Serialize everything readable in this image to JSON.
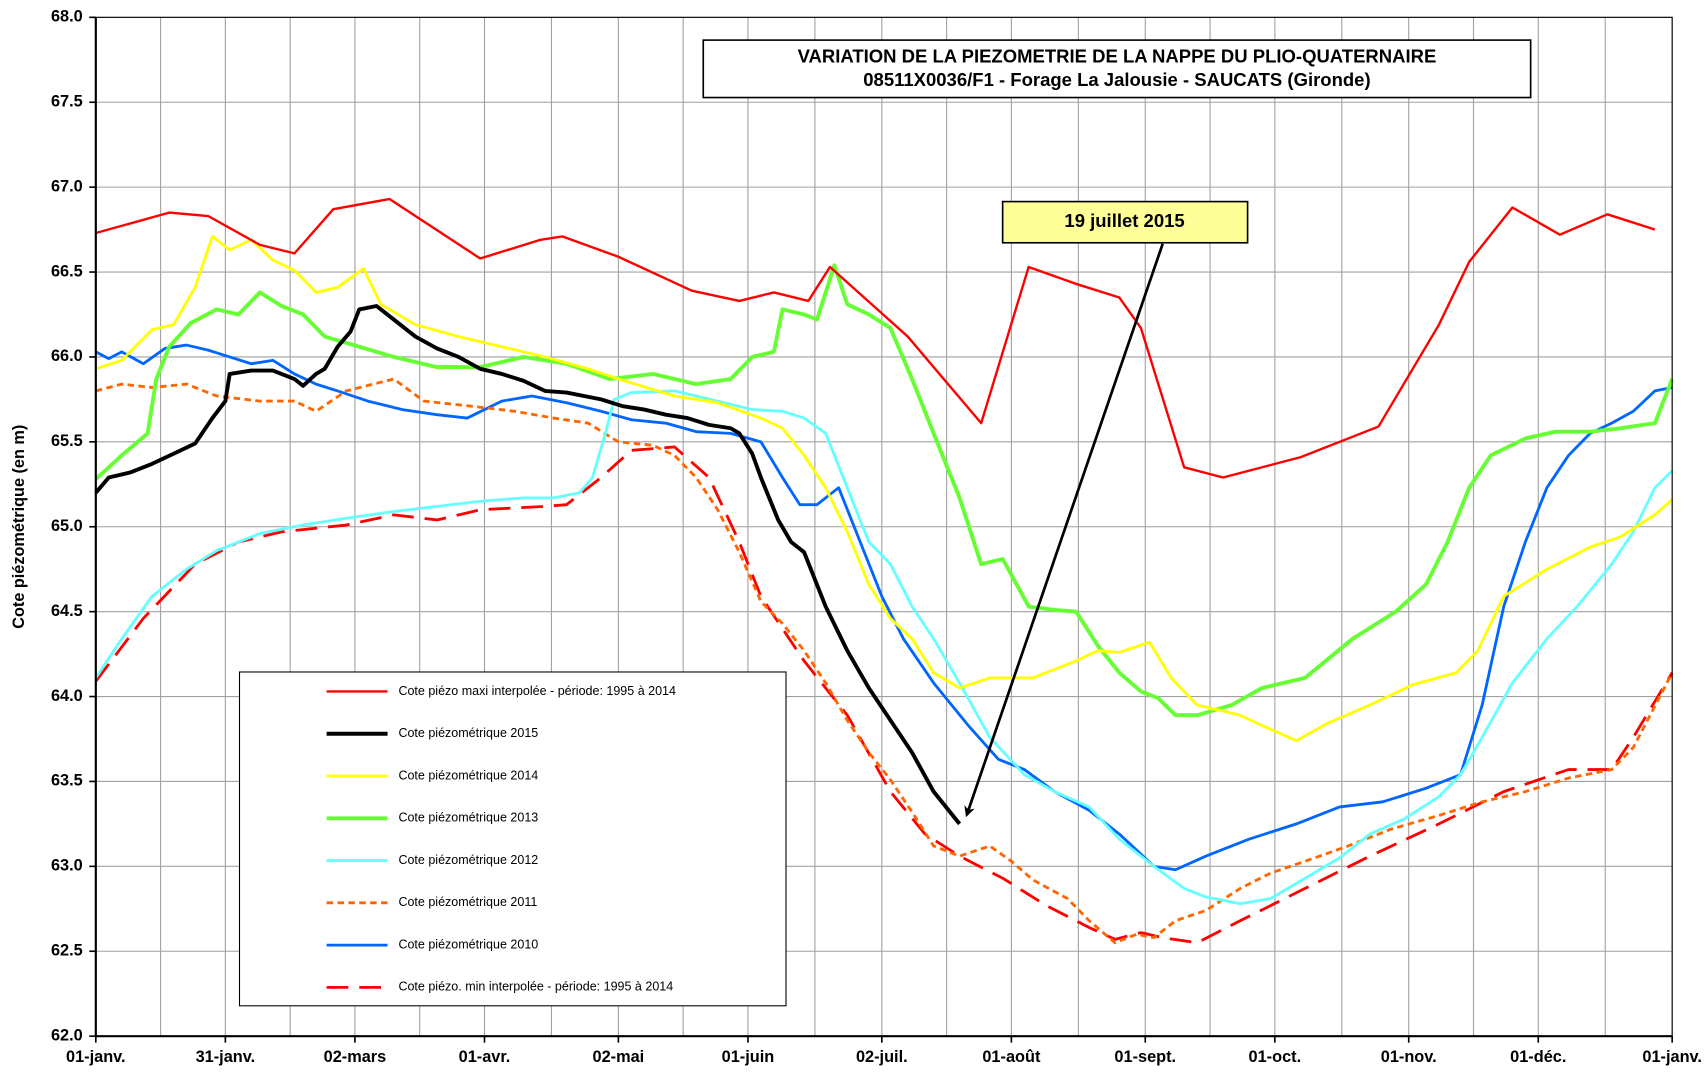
{
  "chart_data": {
    "type": "line",
    "title": [
      "VARIATION DE LA PIEZOMETRIE DE LA NAPPE DU PLIO-QUATERNAIRE",
      "08511X0036/F1 - Forage La Jalousie - SAUCATS (Gironde)"
    ],
    "y_label": "Cote piézométrique (en m)",
    "annotations": [
      "19 juillet 2015"
    ],
    "xlim": [
      0,
      365
    ],
    "xticks": [
      {
        "value": 0,
        "label": "01-janv."
      },
      {
        "value": 30,
        "label": "31-janv."
      },
      {
        "value": 60,
        "label": "02-mars"
      },
      {
        "value": 90,
        "label": "01-avr."
      },
      {
        "value": 121,
        "label": "02-mai"
      },
      {
        "value": 151,
        "label": "01-juin"
      },
      {
        "value": 182,
        "label": "02-juil."
      },
      {
        "value": 212,
        "label": "01-août"
      },
      {
        "value": 243,
        "label": "01-sept."
      },
      {
        "value": 273,
        "label": "01-oct."
      },
      {
        "value": 304,
        "label": "01-nov."
      },
      {
        "value": 334,
        "label": "01-déc."
      },
      {
        "value": 365,
        "label": "01-janv."
      }
    ],
    "ylim": [
      62,
      68
    ],
    "yticks": [
      {
        "value": 62,
        "label": "62.0"
      },
      62.5,
      {
        "value": 63,
        "label": "63.0"
      },
      63.5,
      {
        "value": 64,
        "label": "64.0"
      },
      64.5,
      {
        "value": 65,
        "label": "65.0"
      },
      65.5,
      {
        "value": 66,
        "label": "66.0"
      },
      66.5,
      {
        "value": 67,
        "label": "67.0"
      },
      67.5,
      {
        "value": 68,
        "label": "68.0"
      }
    ],
    "grid": true,
    "series": [
      {
        "name": "Cote piézo maxi interpolée - période: 1995 à 2014",
        "color": "#ff0000",
        "style": "solid",
        "x": [
          0,
          17,
          26,
          38,
          46,
          55,
          68,
          89,
          103,
          108,
          121,
          138,
          149,
          157,
          165,
          170,
          188,
          205,
          216,
          227,
          237,
          242,
          252,
          261,
          279,
          297,
          311,
          318,
          328,
          339,
          350,
          361
        ],
        "values": [
          66.73,
          66.85,
          66.83,
          66.66,
          66.61,
          66.87,
          66.93,
          66.58,
          66.69,
          66.71,
          66.59,
          66.39,
          66.33,
          66.38,
          66.33,
          66.53,
          66.12,
          65.61,
          66.53,
          66.43,
          66.35,
          66.17,
          65.35,
          65.29,
          65.41,
          65.59,
          66.19,
          66.56,
          66.88,
          66.72,
          66.84,
          66.75
        ]
      },
      {
        "name": "Cote piézométrique 2015",
        "color": "#000000",
        "style": "solid",
        "x": [
          0,
          3,
          8,
          13,
          18,
          23,
          27,
          30,
          31,
          36,
          41,
          46,
          48,
          51,
          53,
          56,
          59,
          61,
          65,
          69,
          74,
          79,
          84,
          89,
          94,
          99,
          104,
          109,
          117,
          122,
          127,
          132,
          137,
          142,
          147,
          149,
          152,
          154,
          158,
          161,
          164,
          169,
          174,
          179,
          184,
          189,
          194,
          200
        ],
        "values": [
          65.2,
          65.29,
          65.32,
          65.37,
          65.43,
          65.49,
          65.64,
          65.74,
          65.9,
          65.92,
          65.92,
          65.87,
          65.83,
          65.9,
          65.93,
          66.06,
          66.15,
          66.28,
          66.3,
          66.22,
          66.12,
          66.05,
          66.0,
          65.93,
          65.9,
          65.86,
          65.8,
          65.79,
          65.75,
          65.71,
          65.69,
          65.66,
          65.64,
          65.6,
          65.58,
          65.55,
          65.43,
          65.29,
          65.04,
          64.91,
          64.85,
          64.53,
          64.27,
          64.05,
          63.86,
          63.67,
          63.44,
          63.25
        ]
      },
      {
        "name": "Cote piézométrique 2014",
        "color": "#ffff00",
        "style": "solid",
        "x": [
          0,
          6,
          13,
          18,
          23,
          27,
          31,
          36,
          41,
          46,
          51,
          56,
          62,
          66,
          74,
          84,
          94,
          104,
          114,
          121,
          134,
          144,
          154,
          159,
          164,
          169,
          174,
          179,
          184,
          189,
          194,
          200,
          207,
          217,
          227,
          232,
          237,
          244,
          249,
          255,
          265,
          270,
          278,
          285,
          295,
          305,
          315,
          320,
          326,
          336,
          346,
          353,
          361,
          365
        ],
        "values": [
          65.93,
          65.98,
          66.16,
          66.19,
          66.41,
          66.71,
          66.63,
          66.69,
          66.57,
          66.51,
          66.38,
          66.41,
          66.52,
          66.31,
          66.19,
          66.12,
          66.06,
          66.0,
          65.93,
          65.87,
          65.77,
          65.73,
          65.64,
          65.58,
          65.42,
          65.23,
          64.97,
          64.66,
          64.46,
          64.34,
          64.14,
          64.05,
          64.11,
          64.11,
          64.21,
          64.27,
          64.26,
          64.32,
          64.11,
          63.95,
          63.89,
          63.83,
          63.74,
          63.84,
          63.95,
          64.07,
          64.14,
          64.27,
          64.59,
          64.75,
          64.88,
          64.94,
          65.07,
          65.16
        ]
      },
      {
        "name": "Cote piézométrique 2013",
        "color": "#66ff33",
        "style": "solid",
        "x": [
          0,
          6,
          12,
          14,
          17,
          22,
          28,
          33,
          38,
          43,
          48,
          53,
          61,
          69,
          79,
          89,
          99,
          109,
          119,
          129,
          139,
          147,
          152,
          157,
          159,
          164,
          167,
          171,
          174,
          179,
          184,
          189,
          194,
          200,
          205,
          210,
          216,
          222,
          227,
          232,
          237,
          242,
          246,
          250,
          255,
          263,
          270,
          280,
          291,
          301,
          308,
          313,
          318,
          323,
          331,
          338,
          346,
          353,
          361,
          365
        ],
        "values": [
          65.28,
          65.42,
          65.55,
          65.87,
          66.06,
          66.2,
          66.28,
          66.25,
          66.38,
          66.3,
          66.25,
          66.12,
          66.06,
          66.0,
          65.94,
          65.94,
          66.0,
          65.96,
          65.87,
          65.9,
          65.84,
          65.87,
          66.0,
          66.03,
          66.28,
          66.25,
          66.22,
          66.54,
          66.31,
          66.25,
          66.17,
          65.87,
          65.55,
          65.17,
          64.78,
          64.81,
          64.53,
          64.51,
          64.5,
          64.3,
          64.14,
          64.03,
          63.99,
          63.89,
          63.89,
          63.95,
          64.05,
          64.11,
          64.34,
          64.5,
          64.66,
          64.91,
          65.23,
          65.42,
          65.52,
          65.56,
          65.56,
          65.58,
          65.61,
          65.87
        ]
      },
      {
        "name": "Cote piézométrique 2012",
        "color": "#66ffff",
        "style": "solid",
        "x": [
          0,
          6,
          13,
          21,
          28,
          38,
          48,
          58,
          69,
          79,
          89,
          99,
          106,
          112,
          115,
          118,
          120,
          124,
          134,
          144,
          152,
          159,
          164,
          169,
          174,
          179,
          184,
          189,
          194,
          200,
          207,
          215,
          222,
          230,
          237,
          245,
          252,
          257,
          265,
          272,
          280,
          288,
          295,
          303,
          311,
          316,
          321,
          328,
          336,
          343,
          351,
          356,
          361,
          365
        ],
        "values": [
          64.11,
          64.34,
          64.59,
          64.75,
          64.86,
          64.96,
          65.01,
          65.05,
          65.09,
          65.12,
          65.15,
          65.17,
          65.17,
          65.2,
          65.29,
          65.55,
          65.75,
          65.79,
          65.8,
          65.74,
          65.69,
          65.68,
          65.64,
          65.55,
          65.23,
          64.91,
          64.78,
          64.53,
          64.34,
          64.08,
          63.76,
          63.54,
          63.44,
          63.35,
          63.16,
          63.0,
          62.87,
          62.82,
          62.78,
          62.81,
          62.93,
          63.05,
          63.19,
          63.28,
          63.41,
          63.54,
          63.76,
          64.08,
          64.34,
          64.53,
          64.78,
          64.97,
          65.23,
          65.33
        ]
      },
      {
        "name": "Cote piézométrique 2011",
        "color": "#ff6600",
        "style": "dashed",
        "x": [
          0,
          6,
          13,
          21,
          28,
          38,
          46,
          51,
          58,
          69,
          76,
          87,
          97,
          106,
          114,
          121,
          129,
          134,
          139,
          144,
          149,
          154,
          159,
          164,
          169,
          174,
          179,
          184,
          189,
          194,
          200,
          207,
          212,
          217,
          225,
          230,
          236,
          241,
          245,
          250,
          257,
          265,
          272,
          280,
          290,
          300,
          311,
          321,
          331,
          341,
          351,
          356,
          365
        ],
        "values": [
          65.8,
          65.84,
          65.82,
          65.84,
          65.77,
          65.74,
          65.74,
          65.68,
          65.8,
          65.87,
          65.74,
          65.71,
          65.68,
          65.64,
          65.61,
          65.5,
          65.48,
          65.42,
          65.29,
          65.1,
          64.85,
          64.56,
          64.43,
          64.27,
          64.08,
          63.86,
          63.67,
          63.51,
          63.32,
          63.12,
          63.06,
          63.12,
          63.03,
          62.92,
          62.81,
          62.68,
          62.55,
          62.6,
          62.58,
          62.68,
          62.74,
          62.87,
          62.96,
          63.03,
          63.12,
          63.22,
          63.3,
          63.38,
          63.44,
          63.52,
          63.57,
          63.7,
          64.14
        ]
      },
      {
        "name": "Cote piézométrique 2010",
        "color": "#0066ff",
        "style": "solid",
        "x": [
          0,
          3,
          6,
          11,
          16,
          21,
          26,
          31,
          36,
          41,
          46,
          51,
          56,
          63,
          71,
          79,
          86,
          94,
          101,
          109,
          117,
          124,
          132,
          139,
          147,
          154,
          159,
          163,
          167,
          172,
          177,
          182,
          187,
          194,
          202,
          209,
          215,
          222,
          230,
          237,
          245,
          250,
          257,
          267,
          278,
          288,
          298,
          308,
          316,
          321,
          326,
          331,
          336,
          341,
          346,
          351,
          356,
          361,
          365
        ],
        "values": [
          66.03,
          65.99,
          66.03,
          65.96,
          66.05,
          66.07,
          66.04,
          66.0,
          65.96,
          65.98,
          65.9,
          65.84,
          65.8,
          65.74,
          65.69,
          65.66,
          65.64,
          65.74,
          65.77,
          65.73,
          65.68,
          65.63,
          65.61,
          65.56,
          65.55,
          65.5,
          65.29,
          65.13,
          65.13,
          65.23,
          64.91,
          64.59,
          64.34,
          64.08,
          63.83,
          63.63,
          63.57,
          63.44,
          63.33,
          63.19,
          63.0,
          62.98,
          63.06,
          63.16,
          63.25,
          63.35,
          63.38,
          63.46,
          63.54,
          63.95,
          64.53,
          64.91,
          65.23,
          65.42,
          65.55,
          65.61,
          65.68,
          65.8,
          65.82
        ]
      },
      {
        "name": "Cote piézo. min interpolée - période: 1995 à 2014",
        "color": "#ff0000",
        "style": "longdash",
        "x": [
          0,
          11,
          23,
          33,
          43,
          58,
          69,
          79,
          89,
          104,
          109,
          117,
          124,
          134,
          142,
          149,
          154,
          164,
          174,
          184,
          192,
          200,
          210,
          220,
          230,
          236,
          242,
          247,
          255,
          265,
          280,
          295,
          311,
          326,
          341,
          351,
          356,
          365
        ],
        "values": [
          64.09,
          64.46,
          64.78,
          64.91,
          64.97,
          65.01,
          65.07,
          65.04,
          65.1,
          65.12,
          65.13,
          65.29,
          65.45,
          65.47,
          65.29,
          64.91,
          64.59,
          64.21,
          63.89,
          63.44,
          63.19,
          63.06,
          62.93,
          62.77,
          62.64,
          62.57,
          62.61,
          62.58,
          62.55,
          62.68,
          62.87,
          63.06,
          63.25,
          63.44,
          63.57,
          63.57,
          63.76,
          64.14
        ]
      }
    ]
  }
}
